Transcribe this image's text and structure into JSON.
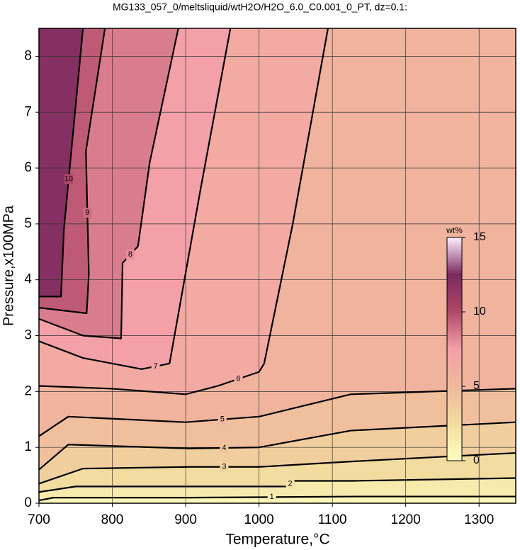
{
  "chart_data": {
    "type": "contour",
    "title": "MG133_057_0/meltsliquid/wtH2O/H2O_6.0_C0.001_0_PT, dz=0.1:",
    "x_label": "Temperature,°C",
    "y_label": "Pressure,x100MPa",
    "xlim": [
      700,
      1350
    ],
    "ylim": [
      0,
      8.5
    ],
    "xticks": [
      700,
      800,
      900,
      1000,
      1100,
      1200,
      1300
    ],
    "yticks": [
      0,
      1,
      2,
      3,
      4,
      5,
      6,
      7,
      8
    ],
    "grid": true,
    "colormap": [
      "#ffffc0",
      "#f2dca0",
      "#efb89c",
      "#f4a0a8",
      "#b04868",
      "#7a2a60",
      "#fff0ff"
    ],
    "colorbar": {
      "label": "wt%",
      "lim": [
        0,
        15
      ],
      "ticks": [
        0,
        5,
        10,
        15
      ]
    },
    "contours": [
      {
        "level": 10,
        "x": [
          700,
          730,
          734,
          747,
          760
        ],
        "y": [
          3.7,
          3.7,
          4.9,
          6.7,
          8.5
        ]
      },
      {
        "level": 9,
        "x": [
          700,
          765,
          768,
          764,
          790
        ],
        "y": [
          3.5,
          3.4,
          4.1,
          6.3,
          8.5
        ]
      },
      {
        "level": 8,
        "x": [
          700,
          760,
          812,
          814,
          835,
          851,
          890
        ],
        "y": [
          3.3,
          3.0,
          2.95,
          4.3,
          4.6,
          6.1,
          8.5
        ]
      },
      {
        "level": 7,
        "x": [
          700,
          760,
          840,
          878,
          920,
          961
        ],
        "y": [
          2.9,
          2.6,
          2.4,
          2.5,
          5.6,
          8.5
        ]
      },
      {
        "level": 6,
        "x": [
          700,
          800,
          900,
          944,
          1000,
          1007,
          1046,
          1094
        ],
        "y": [
          2.1,
          2.05,
          1.95,
          2.1,
          2.35,
          2.5,
          5.0,
          8.5
        ]
      },
      {
        "level": 5,
        "x": [
          700,
          740,
          900,
          1000,
          1125,
          1350
        ],
        "y": [
          1.2,
          1.55,
          1.45,
          1.55,
          1.95,
          2.05
        ]
      },
      {
        "level": 4,
        "x": [
          700,
          740,
          905,
          1000,
          1125,
          1350
        ],
        "y": [
          0.6,
          1.05,
          0.98,
          1.0,
          1.3,
          1.45
        ]
      },
      {
        "level": 3,
        "x": [
          700,
          760,
          905,
          1000,
          1130,
          1350
        ],
        "y": [
          0.35,
          0.62,
          0.65,
          0.65,
          0.75,
          0.9
        ]
      },
      {
        "level": 2,
        "x": [
          700,
          750,
          1040,
          1045,
          1130,
          1350
        ],
        "y": [
          0.2,
          0.3,
          0.3,
          0.4,
          0.4,
          0.45
        ]
      },
      {
        "level": 1,
        "x": [
          700,
          720,
          905,
          1130,
          1350
        ],
        "y": [
          0.05,
          0.1,
          0.1,
          0.12,
          0.12
        ]
      }
    ]
  }
}
